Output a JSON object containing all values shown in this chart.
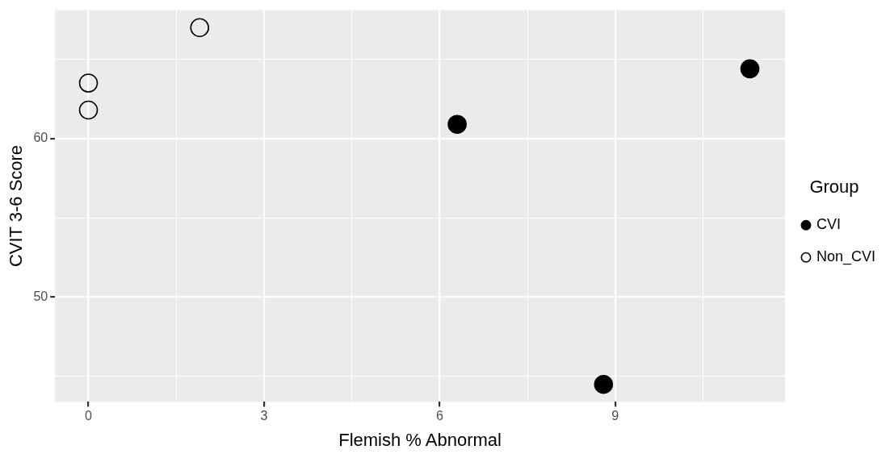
{
  "chart_data": {
    "type": "scatter",
    "xlabel": "Flemish % Abnormal",
    "ylabel": "CVIT 3-6 Score",
    "legend_title": "Group",
    "series": [
      {
        "name": "CVI",
        "color": "#000000",
        "marker": "circle",
        "x": [
          6.3,
          8.8,
          11.3
        ],
        "values": [
          60.9,
          44.5,
          64.4
        ]
      },
      {
        "name": "Non_CVI",
        "color": "#000000",
        "marker": "circle_open",
        "x": [
          0,
          0,
          1.9
        ],
        "values": [
          63.5,
          61.8,
          67
        ]
      }
    ],
    "xlim": [
      -0.57,
      11.9
    ],
    "ylim": [
      43.4,
      68.1
    ],
    "xticks": [
      0,
      {
        "value": 1.5,
        "label": null
      },
      3,
      {
        "value": 4.5,
        "label": null
      },
      6,
      {
        "value": 7.5,
        "label": null
      },
      9,
      {
        "value": 10.5,
        "label": null
      }
    ],
    "yticks": [
      {
        "value": 45,
        "label": null
      },
      50,
      {
        "value": 55,
        "label": null
      },
      60,
      {
        "value": 65,
        "label": null
      }
    ],
    "grid": true,
    "legend": "right"
  }
}
